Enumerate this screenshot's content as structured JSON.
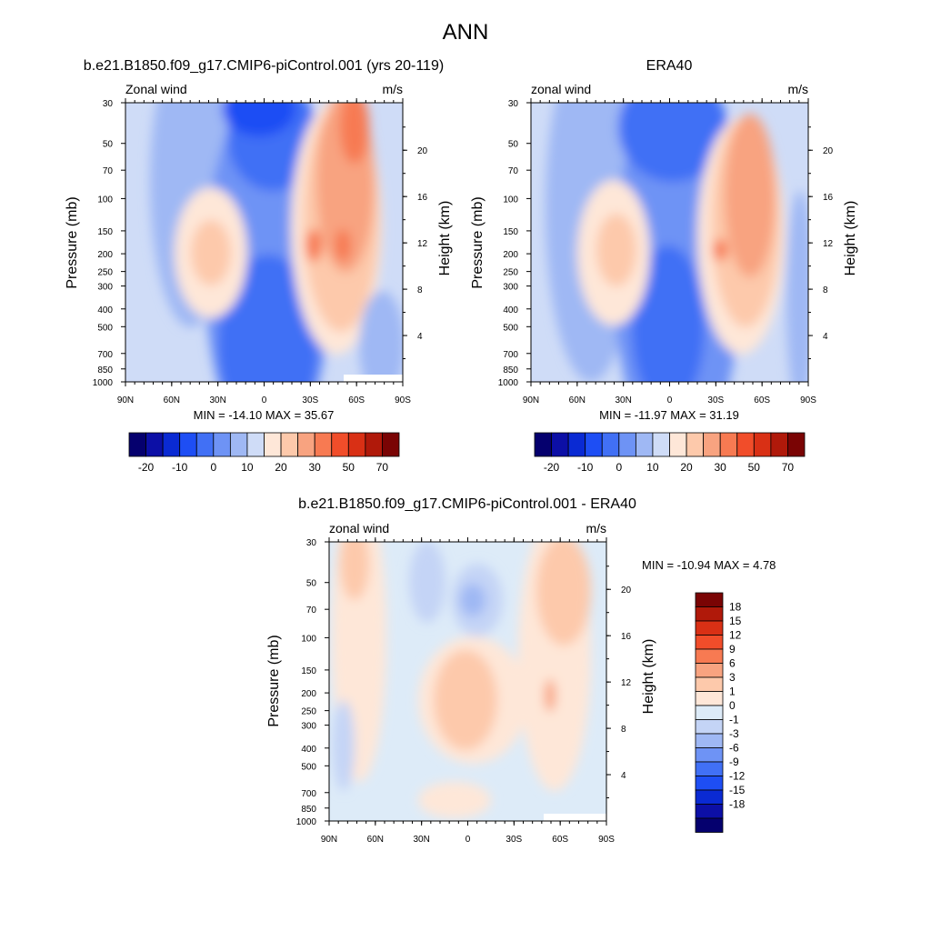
{
  "figure_title": "ANN",
  "colors": {
    "wind_levels": [
      "#05006e",
      "#0c0fa6",
      "#0a2ad3",
      "#1e4ef4",
      "#4170f5",
      "#6e93f5",
      "#9fb8f4",
      "#cfdcf7",
      "#fee7d8",
      "#fdc9ab",
      "#f8a380",
      "#f77a52",
      "#f14d2a",
      "#d93015",
      "#b0190a",
      "#7a0404"
    ],
    "diff_levels": [
      "#7a0404",
      "#b0190a",
      "#d93015",
      "#f14d2a",
      "#f77a52",
      "#f8a380",
      "#fdc9ab",
      "#fee7d8",
      "#ddebf8",
      "#c4d4f6",
      "#9fb8f4",
      "#6e93f5",
      "#4170f5",
      "#1e4ef4",
      "#0a2ad3",
      "#0c0fa6",
      "#05006e"
    ]
  },
  "panels": {
    "model": {
      "title": "b.e21.B1850.f09_g17.CMIP6-piControl.001 (yrs 20-119)",
      "left_label": "Zonal wind",
      "right_label": "m/s",
      "stats": "MIN = -14.10  MAX =  35.67"
    },
    "obs": {
      "title": "ERA40",
      "left_label": "zonal wind",
      "right_label": "m/s",
      "stats": "MIN = -11.97  MAX =  31.19"
    },
    "diff": {
      "title": "b.e21.B1850.f09_g17.CMIP6-piControl.001 - ERA40",
      "left_label": "zonal wind",
      "right_label": "m/s",
      "stats": "MIN = -10.94  MAX =   4.78"
    }
  },
  "chart_data": [
    {
      "type": "heatmap",
      "title": "b.e21.B1850.f09_g17.CMIP6-piControl.001 (yrs 20-119)",
      "ylabel": "Pressure (mb)",
      "y2label": "Height (km)",
      "x_ticks": [
        "90N",
        "60N",
        "30N",
        "0",
        "30S",
        "60S",
        "90S"
      ],
      "y_ticks": [
        "30",
        "50",
        "70",
        "100",
        "150",
        "200",
        "250",
        "300",
        "400",
        "500",
        "700",
        "850",
        "1000"
      ],
      "y2_ticks": [
        "20",
        "16",
        "12",
        "8",
        "4"
      ],
      "colorbar_labels": [
        "-20",
        "-10",
        "0",
        "10",
        "20",
        "30",
        "50",
        "70"
      ],
      "min": -14.1,
      "max": 35.67
    },
    {
      "type": "heatmap",
      "title": "ERA40",
      "ylabel": "Pressure (mb)",
      "y2label": "Height (km)",
      "x_ticks": [
        "90N",
        "60N",
        "30N",
        "0",
        "30S",
        "60S",
        "90S"
      ],
      "y_ticks": [
        "30",
        "50",
        "70",
        "100",
        "150",
        "200",
        "250",
        "300",
        "400",
        "500",
        "700",
        "850",
        "1000"
      ],
      "y2_ticks": [
        "20",
        "16",
        "12",
        "8",
        "4"
      ],
      "colorbar_labels": [
        "-20",
        "-10",
        "0",
        "10",
        "20",
        "30",
        "50",
        "70"
      ],
      "min": -11.97,
      "max": 31.19
    },
    {
      "type": "heatmap",
      "title": "b.e21.B1850.f09_g17.CMIP6-piControl.001 - ERA40",
      "ylabel": "Pressure (mb)",
      "y2label": "Height (km)",
      "x_ticks": [
        "90N",
        "60N",
        "30N",
        "0",
        "30S",
        "60S",
        "90S"
      ],
      "y_ticks": [
        "30",
        "50",
        "70",
        "100",
        "150",
        "200",
        "250",
        "300",
        "400",
        "500",
        "700",
        "850",
        "1000"
      ],
      "y2_ticks": [
        "20",
        "16",
        "12",
        "8",
        "4"
      ],
      "colorbar_labels": [
        "18",
        "15",
        "12",
        "9",
        "6",
        "3",
        "1",
        "0",
        "-1",
        "-3",
        "-6",
        "-9",
        "-12",
        "-15",
        "-18"
      ],
      "min": -10.94,
      "max": 4.78
    }
  ]
}
